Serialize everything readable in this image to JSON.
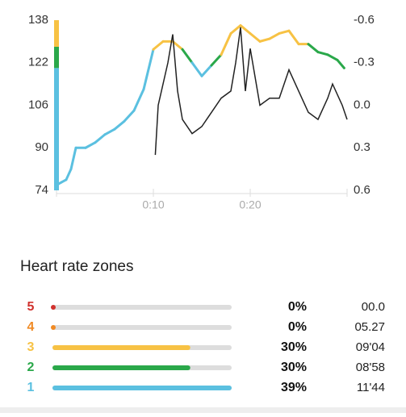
{
  "chart_data": {
    "type": "line",
    "xlim": [
      0,
      30
    ],
    "xticks": [
      {
        "value": 10,
        "label": "0:10"
      },
      {
        "value": 20,
        "label": "0:20"
      }
    ],
    "ylim": [
      74,
      138
    ],
    "yticks": [
      74,
      90,
      106,
      122,
      138
    ],
    "y2lim": [
      -0.6,
      0.6
    ],
    "y2_inverted": true,
    "y2ticks": [
      -0.6,
      -0.3,
      {
        "value": 0,
        "label": "0.0"
      },
      0.3,
      0.6
    ],
    "zone_bands": [
      {
        "from": 74,
        "to": 120,
        "color": "#5bc0e0"
      },
      {
        "from": 120,
        "to": 128,
        "color": "#2aa84a"
      },
      {
        "from": 128,
        "to": 138,
        "color": "#f7c244"
      }
    ],
    "series": [
      {
        "x": [
          0,
          0.5,
          1,
          1.5,
          2,
          3,
          4,
          5,
          6,
          7,
          8,
          9,
          10,
          11,
          12,
          13,
          14,
          15,
          16,
          17,
          18,
          19,
          20,
          21,
          22,
          23,
          24,
          25,
          26,
          27,
          28,
          29,
          29.7
        ],
        "values": [
          76,
          77,
          78,
          82,
          90,
          90,
          92,
          95,
          97,
          100,
          104,
          112,
          127,
          130,
          130,
          127,
          122,
          117,
          121,
          125,
          133,
          136,
          133,
          130,
          131,
          133,
          134,
          129,
          129,
          126,
          125,
          123,
          120
        ]
      },
      {
        "axis": "y2",
        "color": "#222222",
        "x": [
          10.2,
          10.5,
          11.5,
          12,
          12.5,
          13,
          14,
          15,
          16,
          17,
          18,
          18.5,
          19,
          19.5,
          20,
          21,
          22,
          23,
          24,
          25,
          26,
          27,
          28,
          28.5,
          29.5,
          30
        ],
        "values": [
          0.35,
          0.0,
          -0.3,
          -0.5,
          -0.1,
          0.1,
          0.2,
          0.15,
          0.05,
          -0.05,
          -0.1,
          -0.3,
          -0.55,
          -0.1,
          -0.4,
          0.0,
          -0.05,
          -0.05,
          -0.25,
          -0.1,
          0.05,
          0.1,
          -0.05,
          -0.15,
          0.0,
          0.1
        ]
      }
    ]
  },
  "zones": {
    "title": "Heart rate zones",
    "rows": [
      {
        "zone": 5,
        "color": "#d0312d",
        "percent": 0,
        "percent_label": "0%",
        "time": "00.0"
      },
      {
        "zone": 4,
        "color": "#f08a24",
        "percent": 0,
        "percent_label": "0%",
        "time": "05.27"
      },
      {
        "zone": 3,
        "color": "#f7c244",
        "percent": 30,
        "percent_label": "30%",
        "time": "09'04"
      },
      {
        "zone": 2,
        "color": "#2aa84a",
        "percent": 30,
        "percent_label": "30%",
        "time": "08'58"
      },
      {
        "zone": 1,
        "color": "#5bc0e0",
        "percent": 39,
        "percent_label": "39%",
        "time": "11'44"
      }
    ]
  }
}
